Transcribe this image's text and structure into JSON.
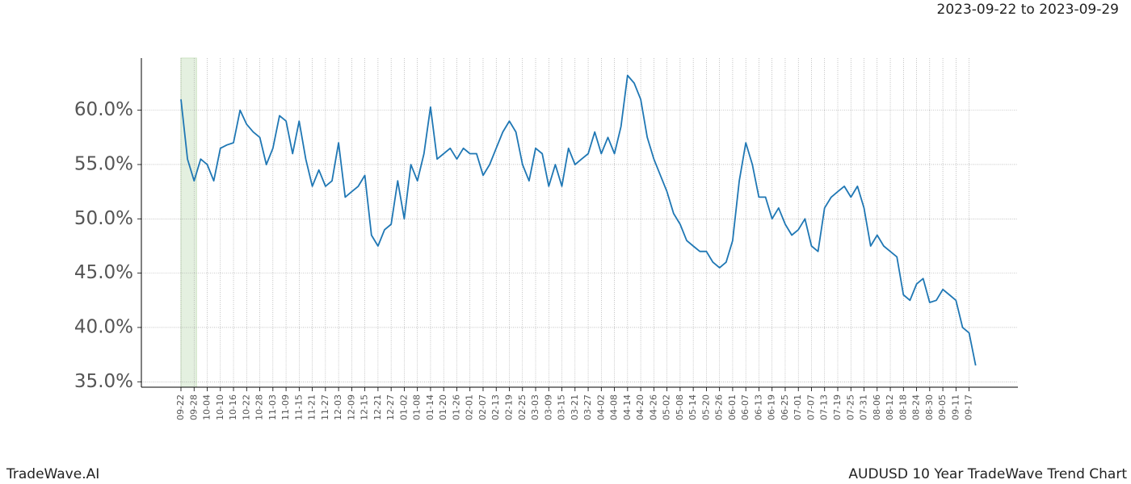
{
  "chart_data": {
    "type": "line",
    "title": "AUDUSD 10 Year TradeWave Trend Chart",
    "date_range": "2023-09-22 to 2023-09-29",
    "brand": "TradeWave.AI",
    "categories": [
      "09-22",
      null,
      "09-28",
      null,
      "10-04",
      null,
      "10-10",
      null,
      "10-16",
      null,
      "10-22",
      null,
      "10-28",
      null,
      "11-03",
      null,
      "11-09",
      null,
      "11-15",
      null,
      "11-21",
      null,
      "11-27",
      null,
      "12-03",
      null,
      "12-09",
      null,
      "12-15",
      null,
      "12-21",
      null,
      "12-27",
      null,
      "01-02",
      null,
      "01-08",
      null,
      "01-14",
      null,
      "01-20",
      null,
      "01-26",
      null,
      "02-01",
      null,
      "02-07",
      null,
      "02-13",
      null,
      "02-19",
      null,
      "02-25",
      null,
      "03-03",
      null,
      "03-09",
      null,
      "03-15",
      null,
      "03-21",
      null,
      "03-27",
      null,
      "04-02",
      null,
      "04-08",
      null,
      "04-14",
      null,
      "04-20",
      null,
      "04-26",
      null,
      "05-02",
      null,
      "05-08",
      null,
      "05-14",
      null,
      "05-20",
      null,
      "05-26",
      null,
      "06-01",
      null,
      "06-07",
      null,
      "06-13",
      null,
      "06-19",
      null,
      "06-25",
      null,
      "07-01",
      null,
      "07-07",
      null,
      "07-13",
      null,
      "07-19",
      null,
      "07-25",
      null,
      "07-31",
      null,
      "08-06",
      null,
      "08-12",
      null,
      "08-18",
      null,
      "08-24",
      null,
      "08-30",
      null,
      "09-05",
      null,
      "09-11",
      null,
      "09-17",
      null
    ],
    "series": [
      {
        "color": "#1f77b4",
        "values": [
          61.0,
          55.5,
          53.5,
          55.5,
          55.0,
          53.5,
          56.5,
          56.8,
          57.0,
          60.0,
          58.7,
          58.0,
          57.5,
          55.0,
          56.5,
          59.5,
          59.0,
          56.0,
          59.0,
          55.5,
          53.0,
          54.5,
          53.0,
          53.5,
          57.0,
          52.0,
          52.5,
          53.0,
          54.0,
          48.5,
          47.5,
          49.0,
          49.5,
          53.5,
          50.0,
          55.0,
          53.5,
          56.0,
          60.3,
          55.5,
          56.0,
          56.5,
          55.5,
          56.5,
          56.0,
          56.0,
          54.0,
          55.0,
          56.5,
          58.0,
          59.0,
          58.0,
          55.0,
          53.5,
          56.5,
          56.0,
          53.0,
          55.0,
          53.0,
          56.5,
          55.0,
          55.5,
          56.0,
          58.0,
          56.0,
          57.5,
          56.0,
          58.5,
          63.2,
          62.5,
          61.0,
          57.5,
          55.5,
          54.0,
          52.5,
          50.5,
          49.5,
          48.0,
          47.5,
          47.0,
          47.0,
          46.0,
          45.5,
          46.0,
          48.0,
          53.5,
          57.0,
          55.0,
          52.0,
          52.0,
          50.0,
          51.0,
          49.5,
          48.5,
          49.0,
          50.0,
          47.5,
          47.0,
          51.0,
          52.0,
          52.5,
          53.0,
          52.0,
          53.0,
          51.0,
          47.5,
          48.5,
          47.5,
          47.0,
          46.5,
          43.0,
          42.5,
          44.0,
          44.5,
          42.3,
          42.5,
          43.5,
          43.0,
          42.5,
          40.0,
          39.5,
          36.5
        ]
      }
    ],
    "ylim": [
      34.5,
      64.8
    ],
    "yticks": [
      {
        "value": 35,
        "label": "35.0%"
      },
      {
        "value": 40,
        "label": "40.0%"
      },
      {
        "value": 45,
        "label": "45.0%"
      },
      {
        "value": 50,
        "label": "50.0%"
      },
      {
        "value": 55,
        "label": "55.0%"
      },
      {
        "value": 60,
        "label": "60.0%"
      }
    ],
    "grid": true
  }
}
